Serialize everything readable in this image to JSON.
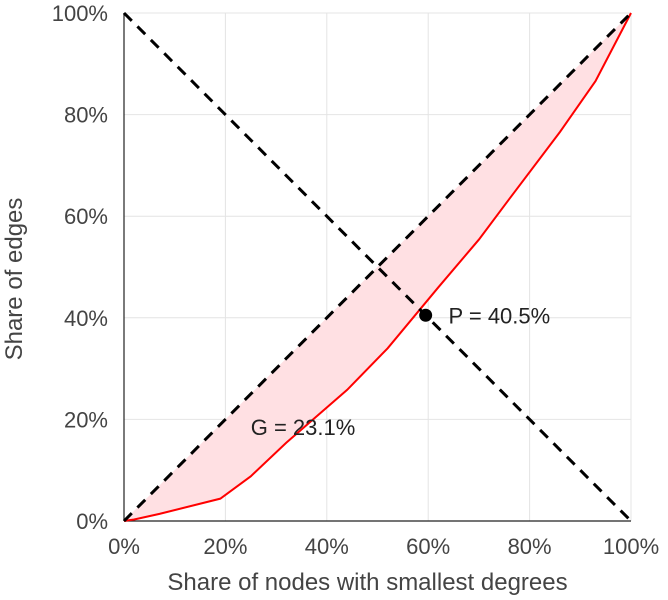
{
  "chart_data": {
    "type": "line",
    "title": "",
    "xlabel": "Share of nodes with smallest degrees",
    "ylabel": "Share of edges",
    "xlim": [
      0,
      100
    ],
    "ylim": [
      0,
      100
    ],
    "x_ticks": [
      0,
      20,
      40,
      60,
      80,
      100
    ],
    "y_ticks": [
      0,
      20,
      40,
      60,
      80,
      100
    ],
    "x_tick_labels": [
      "0%",
      "20%",
      "40%",
      "60%",
      "80%",
      "100%"
    ],
    "y_tick_labels": [
      "0%",
      "20%",
      "40%",
      "60%",
      "80%",
      "100%"
    ],
    "grid": true,
    "series": [
      {
        "style": "solid",
        "color": "#ff0000",
        "fill": "#ffe0e3",
        "x": [
          0,
          2,
          7,
          19,
          25,
          32,
          44,
          52,
          62,
          70,
          76,
          86,
          93,
          100
        ],
        "y": [
          0,
          0.3,
          1.4,
          4.4,
          8.8,
          15.4,
          25.8,
          34,
          46,
          55.4,
          63.4,
          76.6,
          86.6,
          100
        ]
      },
      {
        "style": "dashed",
        "color": "#000000",
        "x": [
          0,
          100
        ],
        "y": [
          0,
          100
        ]
      },
      {
        "style": "dashed",
        "color": "#000000",
        "x": [
          0,
          100
        ],
        "y": [
          100,
          0
        ]
      }
    ],
    "point": {
      "x": 59.5,
      "y": 40.5,
      "color": "#000000"
    },
    "annotations": [
      {
        "text": "P = 40.5%",
        "x": 64,
        "y": 40.5
      },
      {
        "text": "G = 23.1%",
        "x": 25,
        "y": 18.5
      }
    ]
  }
}
